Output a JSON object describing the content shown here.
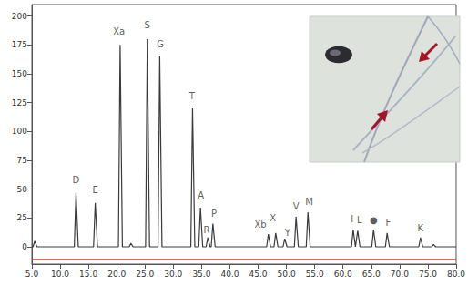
{
  "chart_data": {
    "type": "line",
    "series": [
      {
        "color": "#3a3a3a",
        "x": [
          5,
          5.2,
          5.5,
          5.9,
          12.5,
          12.8,
          13.2,
          15.9,
          16.2,
          16.6,
          20.3,
          20.6,
          21.0,
          22.2,
          22.5,
          22.9,
          25.1,
          25.4,
          25.8,
          27.3,
          27.6,
          28.0,
          33.1,
          33.4,
          33.8,
          34.5,
          34.8,
          35.2,
          35.8,
          36.1,
          36.5,
          36.7,
          37.0,
          37.4,
          46.5,
          46.8,
          47.2,
          47.8,
          48.1,
          48.5,
          49.4,
          49.7,
          50.1,
          51.4,
          51.7,
          52.1,
          53.5,
          53.8,
          54.2,
          61.5,
          61.8,
          62.2,
          62.3,
          62.6,
          63.0,
          65.1,
          65.4,
          65.8,
          67.5,
          67.8,
          68.2,
          73.4,
          73.7,
          74.1,
          75.7,
          76.0,
          76.4,
          80
        ],
        "values": [
          0,
          0,
          5,
          0,
          0,
          47,
          0,
          0,
          38,
          0,
          0,
          175,
          0,
          0,
          3,
          0,
          0,
          180,
          0,
          0,
          165,
          0,
          0,
          120,
          0,
          0,
          34,
          0,
          0,
          8,
          0,
          0,
          20,
          0,
          0,
          11,
          0,
          0,
          12,
          0,
          0,
          7,
          0,
          0,
          26,
          0,
          0,
          30,
          0,
          0,
          15,
          0,
          0,
          14,
          0,
          0,
          15,
          0,
          0,
          12,
          0,
          0,
          8,
          0,
          0,
          2,
          0,
          0
        ]
      },
      {
        "color": "#e03020",
        "x": [
          5,
          80
        ],
        "values": [
          -11,
          -11
        ]
      }
    ],
    "annotations": [
      {
        "text": "D",
        "x": 12.8,
        "y": 58
      },
      {
        "text": "E",
        "x": 16.2,
        "y": 49
      },
      {
        "text": "Xa",
        "x": 20.4,
        "y": 187
      },
      {
        "text": "S",
        "x": 25.4,
        "y": 192
      },
      {
        "text": "G",
        "x": 27.7,
        "y": 176
      },
      {
        "text": "T",
        "x": 33.3,
        "y": 131
      },
      {
        "text": "A",
        "x": 34.9,
        "y": 45
      },
      {
        "text": "R",
        "x": 35.9,
        "y": 15
      },
      {
        "text": "P",
        "x": 37.2,
        "y": 29
      },
      {
        "text": "Xb",
        "x": 45.4,
        "y": 19
      },
      {
        "text": "X",
        "x": 47.6,
        "y": 25
      },
      {
        "text": "Y",
        "x": 50.2,
        "y": 12
      },
      {
        "text": "V",
        "x": 51.7,
        "y": 35
      },
      {
        "text": "M",
        "x": 54.0,
        "y": 39
      },
      {
        "text": "I",
        "x": 61.6,
        "y": 24
      },
      {
        "text": "L",
        "x": 62.9,
        "y": 23
      },
      {
        "text": "●",
        "x": 65.4,
        "y": 23
      },
      {
        "text": "F",
        "x": 68.0,
        "y": 21
      },
      {
        "text": "K",
        "x": 73.7,
        "y": 16
      }
    ],
    "xlim": [
      5,
      80
    ],
    "xticks": [
      {
        "value": 5,
        "label": "5.0"
      },
      {
        "value": 10,
        "label": "10.0"
      },
      {
        "value": 15,
        "label": "15.0"
      },
      {
        "value": 20,
        "label": "20.0"
      },
      {
        "value": 25,
        "label": "25.0"
      },
      {
        "value": 30,
        "label": "30.0"
      },
      {
        "value": 35,
        "label": "35.0"
      },
      {
        "value": 40,
        "label": "40.0"
      },
      {
        "value": 45,
        "label": "45.0"
      },
      {
        "value": 50,
        "label": "50.0"
      },
      {
        "value": 55,
        "label": "55.0"
      },
      {
        "value": 60,
        "label": "60.0"
      },
      {
        "value": 65,
        "label": "65.0"
      },
      {
        "value": 70,
        "label": "70.0"
      },
      {
        "value": 75,
        "label": "75.0"
      },
      {
        "value": 80,
        "label": "80.0"
      }
    ],
    "ylim": [
      -15,
      210
    ],
    "yticks": [
      0,
      25,
      50,
      75,
      100,
      125,
      150,
      175,
      200
    ],
    "grid": false
  }
}
